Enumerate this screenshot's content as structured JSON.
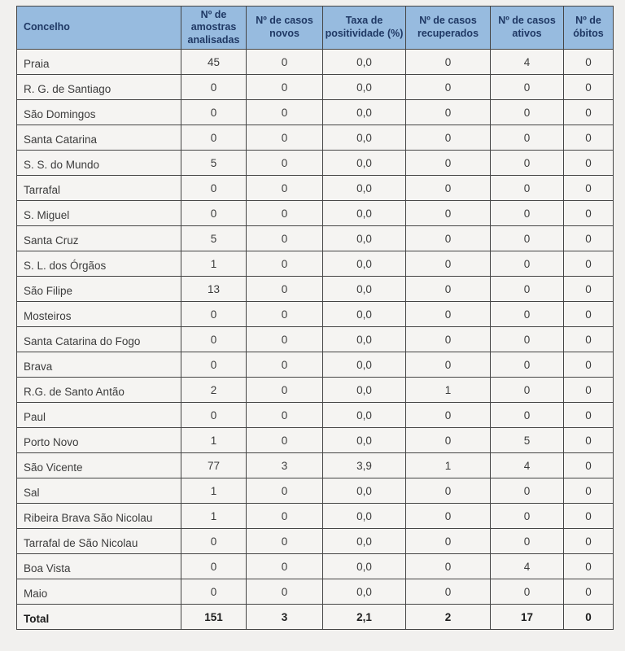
{
  "colors": {
    "header_bg": "#97BBDF",
    "header_text": "#1F3864",
    "border": "#454545",
    "page_bg": "#F1F0EE",
    "cell_bg": "#F5F4F2"
  },
  "table": {
    "columns": [
      "Concelho",
      "Nº de\namostras\nanalisadas",
      "Nº de casos\nnovos",
      "Taxa de\npositividade (%)",
      "Nº de casos\nrecuperados",
      "Nº de casos\nativos",
      "Nº de\nóbitos"
    ],
    "rows": [
      {
        "label": "Praia",
        "values": [
          "45",
          "0",
          "0,0",
          "0",
          "4",
          "0"
        ]
      },
      {
        "label": "R. G. de Santiago",
        "values": [
          "0",
          "0",
          "0,0",
          "0",
          "0",
          "0"
        ]
      },
      {
        "label": "São Domingos",
        "values": [
          "0",
          "0",
          "0,0",
          "0",
          "0",
          "0"
        ]
      },
      {
        "label": "Santa Catarina",
        "values": [
          "0",
          "0",
          "0,0",
          "0",
          "0",
          "0"
        ]
      },
      {
        "label": "S. S. do Mundo",
        "values": [
          "5",
          "0",
          "0,0",
          "0",
          "0",
          "0"
        ]
      },
      {
        "label": "Tarrafal",
        "values": [
          "0",
          "0",
          "0,0",
          "0",
          "0",
          "0"
        ]
      },
      {
        "label": "S. Miguel",
        "values": [
          "0",
          "0",
          "0,0",
          "0",
          "0",
          "0"
        ]
      },
      {
        "label": "Santa Cruz",
        "values": [
          "5",
          "0",
          "0,0",
          "0",
          "0",
          "0"
        ]
      },
      {
        "label": "S. L. dos Órgãos",
        "values": [
          "1",
          "0",
          "0,0",
          "0",
          "0",
          "0"
        ]
      },
      {
        "label": "São Filipe",
        "values": [
          "13",
          "0",
          "0,0",
          "0",
          "0",
          "0"
        ]
      },
      {
        "label": "Mosteiros",
        "values": [
          "0",
          "0",
          "0,0",
          "0",
          "0",
          "0"
        ]
      },
      {
        "label": "Santa Catarina do Fogo",
        "values": [
          "0",
          "0",
          "0,0",
          "0",
          "0",
          "0"
        ]
      },
      {
        "label": "Brava",
        "values": [
          "0",
          "0",
          "0,0",
          "0",
          "0",
          "0"
        ]
      },
      {
        "label": "R.G. de Santo Antão",
        "values": [
          "2",
          "0",
          "0,0",
          "1",
          "0",
          "0"
        ]
      },
      {
        "label": "Paul",
        "values": [
          "0",
          "0",
          "0,0",
          "0",
          "0",
          "0"
        ]
      },
      {
        "label": "Porto Novo",
        "values": [
          "1",
          "0",
          "0,0",
          "0",
          "5",
          "0"
        ]
      },
      {
        "label": "São Vicente",
        "values": [
          "77",
          "3",
          "3,9",
          "1",
          "4",
          "0"
        ]
      },
      {
        "label": "Sal",
        "values": [
          "1",
          "0",
          "0,0",
          "0",
          "0",
          "0"
        ]
      },
      {
        "label": "Ribeira Brava São Nicolau",
        "values": [
          "1",
          "0",
          "0,0",
          "0",
          "0",
          "0"
        ]
      },
      {
        "label": "Tarrafal de São Nicolau",
        "values": [
          "0",
          "0",
          "0,0",
          "0",
          "0",
          "0"
        ]
      },
      {
        "label": "Boa Vista",
        "values": [
          "0",
          "0",
          "0,0",
          "0",
          "4",
          "0"
        ]
      },
      {
        "label": "Maio",
        "values": [
          "0",
          "0",
          "0,0",
          "0",
          "0",
          "0"
        ]
      }
    ],
    "total": {
      "label": "Total",
      "values": [
        "151",
        "3",
        "2,1",
        "2",
        "17",
        "0"
      ]
    }
  }
}
